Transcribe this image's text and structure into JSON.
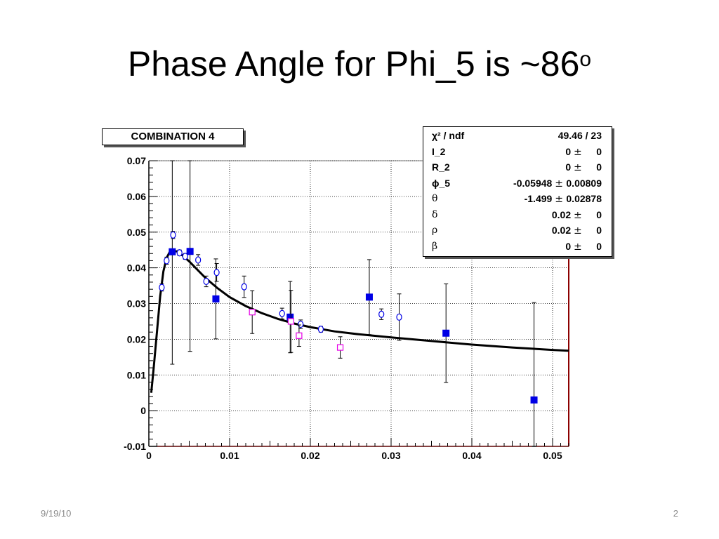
{
  "slide": {
    "title_main": "Phase Angle for Phi_5 is ~86",
    "title_sup": "o",
    "date": "9/19/10",
    "page_number": "2"
  },
  "chart_data": {
    "type": "scatter",
    "title": "COMBINATION 4",
    "xlim": [
      0,
      0.052
    ],
    "ylim": [
      -0.01,
      0.07
    ],
    "x_ticks": [
      "0",
      "0.01",
      "0.02",
      "0.03",
      "0.04",
      "0.05"
    ],
    "y_ticks": [
      "-0.01",
      "0",
      "0.01",
      "0.02",
      "0.03",
      "0.04",
      "0.05",
      "0.06",
      "0.07"
    ],
    "grid": true,
    "series": [
      {
        "marker": "filled-square",
        "color": "#0000e6",
        "points": [
          {
            "x": 0.0029,
            "y": 0.0445,
            "err": 0.0315
          },
          {
            "x": 0.0051,
            "y": 0.0446,
            "err": 0.028
          },
          {
            "x": 0.0083,
            "y": 0.0313,
            "err": 0.0112
          },
          {
            "x": 0.0175,
            "y": 0.0262,
            "err": 0.01
          },
          {
            "x": 0.0273,
            "y": 0.0318,
            "err": 0.0105
          },
          {
            "x": 0.0368,
            "y": 0.0217,
            "err": 0.0138
          },
          {
            "x": 0.0477,
            "y": 0.003,
            "err": 0.0273
          }
        ]
      },
      {
        "marker": "open-circle",
        "color": "#0000e6",
        "points": [
          {
            "x": 0.0016,
            "y": 0.0345,
            "err": 0.001
          },
          {
            "x": 0.0022,
            "y": 0.042,
            "err": 0.001
          },
          {
            "x": 0.003,
            "y": 0.0492,
            "err": 0.001
          },
          {
            "x": 0.0038,
            "y": 0.0442,
            "err": 0.0008
          },
          {
            "x": 0.0045,
            "y": 0.0432,
            "err": 0.0008
          },
          {
            "x": 0.0061,
            "y": 0.0422,
            "err": 0.0015
          },
          {
            "x": 0.0071,
            "y": 0.0362,
            "err": 0.0015
          },
          {
            "x": 0.0084,
            "y": 0.0387,
            "err": 0.0025
          },
          {
            "x": 0.0118,
            "y": 0.0347,
            "err": 0.003
          },
          {
            "x": 0.0165,
            "y": 0.0272,
            "err": 0.0015
          },
          {
            "x": 0.0188,
            "y": 0.0242,
            "err": 0.0012
          },
          {
            "x": 0.0213,
            "y": 0.0228,
            "err": 0.0008
          },
          {
            "x": 0.0288,
            "y": 0.027,
            "err": 0.0015
          },
          {
            "x": 0.031,
            "y": 0.0262,
            "err": 0.0065
          }
        ]
      },
      {
        "marker": "open-square",
        "color": "#e600e6",
        "points": [
          {
            "x": 0.0128,
            "y": 0.0276,
            "err": 0.006
          },
          {
            "x": 0.0176,
            "y": 0.025,
            "err": 0.0087
          },
          {
            "x": 0.0186,
            "y": 0.021,
            "err": 0.003
          },
          {
            "x": 0.0237,
            "y": 0.0177,
            "err": 0.003
          }
        ]
      }
    ],
    "fit_curve": {
      "color": "#000000",
      "x": [
        0.0003,
        0.0006,
        0.001,
        0.0014,
        0.0018,
        0.0022,
        0.0026,
        0.003,
        0.0035,
        0.004,
        0.005,
        0.006,
        0.007,
        0.0085,
        0.01,
        0.012,
        0.014,
        0.016,
        0.018,
        0.02,
        0.023,
        0.026,
        0.03,
        0.035,
        0.04,
        0.045,
        0.05,
        0.052
      ],
      "y": [
        0.005,
        0.012,
        0.022,
        0.032,
        0.039,
        0.0428,
        0.0445,
        0.0447,
        0.0446,
        0.0438,
        0.0418,
        0.0395,
        0.0372,
        0.0343,
        0.0318,
        0.0293,
        0.0273,
        0.0257,
        0.0244,
        0.0234,
        0.0222,
        0.0214,
        0.0205,
        0.0195,
        0.0185,
        0.0177,
        0.017,
        0.0168
      ]
    },
    "stats": [
      {
        "name": "χ² / ndf",
        "value": "49.46 / 23",
        "greek": false
      },
      {
        "name": "I_2",
        "value": "0",
        "error": "0",
        "greek": false
      },
      {
        "name": "R_2",
        "value": "0",
        "error": "0",
        "greek": false
      },
      {
        "name": "ϕ_5",
        "value": "-0.05948",
        "error": "0.00809",
        "greek": false
      },
      {
        "name": "θ",
        "value": "-1.499",
        "error": "0.02878",
        "greek": true
      },
      {
        "name": "δ",
        "value": "0.02",
        "error": "0",
        "greek": true
      },
      {
        "name": "ρ",
        "value": "0.02",
        "error": "0",
        "greek": true
      },
      {
        "name": "β",
        "value": "0",
        "error": "0",
        "greek": true
      }
    ]
  }
}
